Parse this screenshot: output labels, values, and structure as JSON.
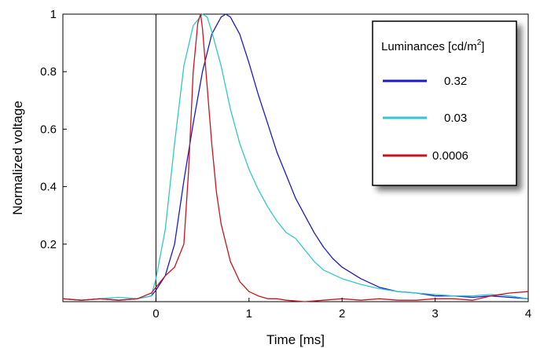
{
  "chart_data": {
    "type": "line",
    "xlabel": "Time [ms]",
    "ylabel": "Normalized voltage",
    "xlim": [
      -1,
      4
    ],
    "ylim": [
      0,
      1
    ],
    "xticks": [
      0,
      1,
      2,
      3,
      4
    ],
    "yticks": [
      0.2,
      0.4,
      0.6,
      0.8,
      1
    ],
    "xtick_labels": [
      "0",
      "1",
      "2",
      "3",
      "4"
    ],
    "ytick_labels": [
      "0.2",
      "0.4",
      "0.6",
      "0.8",
      "1"
    ],
    "vertical_reference_line_x": 0,
    "grid": false,
    "legend": {
      "position": "top-right",
      "title": "Luminances [cd/m",
      "title_superscript": "2",
      "title_suffix": "]"
    },
    "series": [
      {
        "name": "0.32",
        "color": "#1a1ac8",
        "x": [
          -1.0,
          -0.8,
          -0.6,
          -0.4,
          -0.2,
          -0.05,
          0.0,
          0.1,
          0.2,
          0.3,
          0.4,
          0.5,
          0.6,
          0.7,
          0.75,
          0.8,
          0.9,
          1.0,
          1.1,
          1.2,
          1.3,
          1.4,
          1.5,
          1.6,
          1.7,
          1.8,
          1.9,
          2.0,
          2.2,
          2.4,
          2.6,
          2.8,
          3.0,
          3.2,
          3.4,
          3.6,
          3.8,
          4.0
        ],
        "y": [
          0.01,
          0.005,
          0.01,
          0.005,
          0.01,
          0.02,
          0.04,
          0.09,
          0.2,
          0.42,
          0.62,
          0.8,
          0.93,
          0.99,
          1.0,
          0.99,
          0.93,
          0.83,
          0.72,
          0.62,
          0.52,
          0.44,
          0.36,
          0.3,
          0.24,
          0.19,
          0.15,
          0.12,
          0.08,
          0.05,
          0.035,
          0.03,
          0.02,
          0.02,
          0.015,
          0.02,
          0.015,
          0.01
        ]
      },
      {
        "name": "0.03",
        "color": "#30c8c8",
        "x": [
          -1.0,
          -0.8,
          -0.6,
          -0.4,
          -0.2,
          -0.05,
          0.0,
          0.1,
          0.2,
          0.3,
          0.4,
          0.5,
          0.55,
          0.6,
          0.7,
          0.8,
          0.9,
          1.0,
          1.1,
          1.2,
          1.3,
          1.4,
          1.5,
          1.6,
          1.7,
          1.8,
          2.0,
          2.2,
          2.4,
          2.6,
          2.8,
          3.0,
          3.2,
          3.4,
          3.6,
          3.8,
          4.0
        ],
        "y": [
          0.01,
          0.005,
          0.01,
          0.015,
          0.01,
          0.02,
          0.08,
          0.25,
          0.55,
          0.82,
          0.96,
          1.0,
          0.99,
          0.94,
          0.82,
          0.67,
          0.55,
          0.46,
          0.39,
          0.33,
          0.28,
          0.24,
          0.22,
          0.18,
          0.14,
          0.11,
          0.08,
          0.06,
          0.045,
          0.035,
          0.03,
          0.025,
          0.02,
          0.02,
          0.025,
          0.02,
          0.01
        ]
      },
      {
        "name": "0.0006",
        "color": "#c8141e",
        "x": [
          -1.0,
          -0.8,
          -0.6,
          -0.4,
          -0.2,
          -0.05,
          0.0,
          0.1,
          0.2,
          0.3,
          0.35,
          0.4,
          0.45,
          0.48,
          0.5,
          0.55,
          0.6,
          0.65,
          0.7,
          0.8,
          0.9,
          1.0,
          1.1,
          1.2,
          1.3,
          1.4,
          1.6,
          1.8,
          2.0,
          2.2,
          2.4,
          2.6,
          2.8,
          3.0,
          3.2,
          3.4,
          3.6,
          3.8,
          4.0
        ],
        "y": [
          0.01,
          0.005,
          0.01,
          0.005,
          0.01,
          0.03,
          0.05,
          0.09,
          0.12,
          0.2,
          0.45,
          0.8,
          0.97,
          1.0,
          0.95,
          0.75,
          0.55,
          0.38,
          0.27,
          0.14,
          0.07,
          0.035,
          0.02,
          0.01,
          0.01,
          0.005,
          0.0,
          0.005,
          0.01,
          0.005,
          0.01,
          0.005,
          0.005,
          0.01,
          0.01,
          0.005,
          0.02,
          0.03,
          0.035
        ]
      }
    ]
  }
}
